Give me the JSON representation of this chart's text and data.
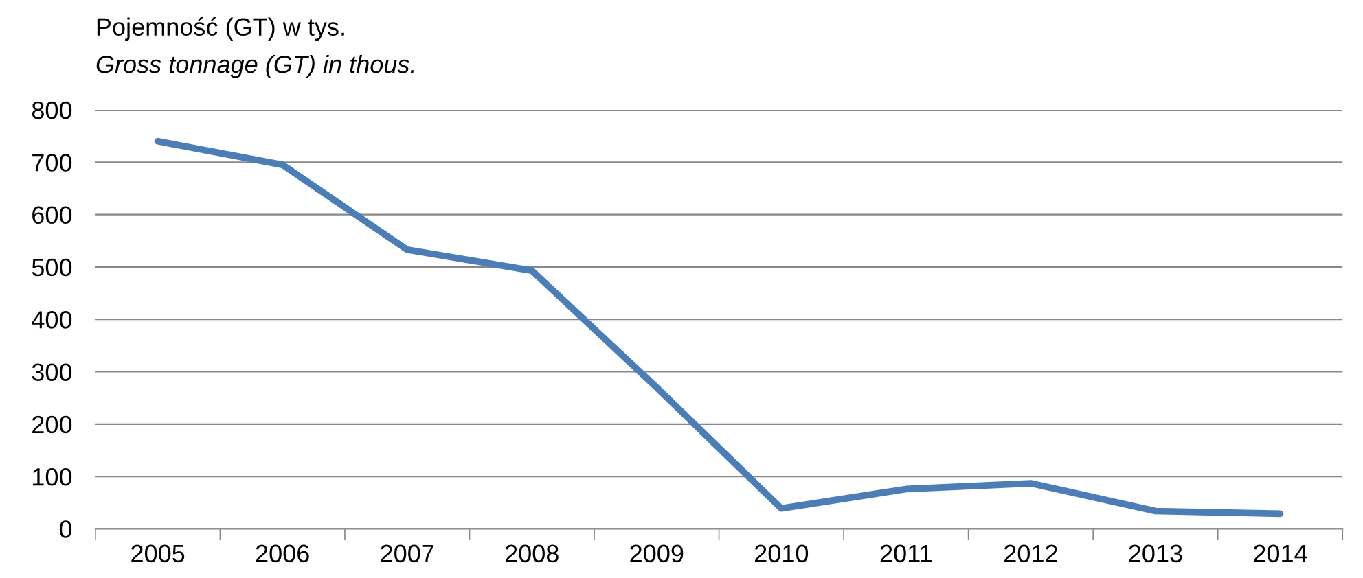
{
  "chart_data": {
    "type": "line",
    "title": "Pojemność (GT) w tys.",
    "subtitle": "Gross tonnage (GT) in thous.",
    "categories": [
      "2005",
      "2006",
      "2007",
      "2008",
      "2009",
      "2010",
      "2011",
      "2012",
      "2013",
      "2014"
    ],
    "series": [
      {
        "color": "#4a7ebb",
        "values": [
          740,
          695,
          533,
          493,
          270,
          39,
          76,
          87,
          34,
          29
        ]
      }
    ],
    "ylim": [
      0,
      800
    ],
    "yticks": [
      0,
      100,
      200,
      300,
      400,
      500,
      600,
      700,
      800
    ],
    "grid": "y",
    "legend": false,
    "marker": "none",
    "line_style": "solid"
  }
}
